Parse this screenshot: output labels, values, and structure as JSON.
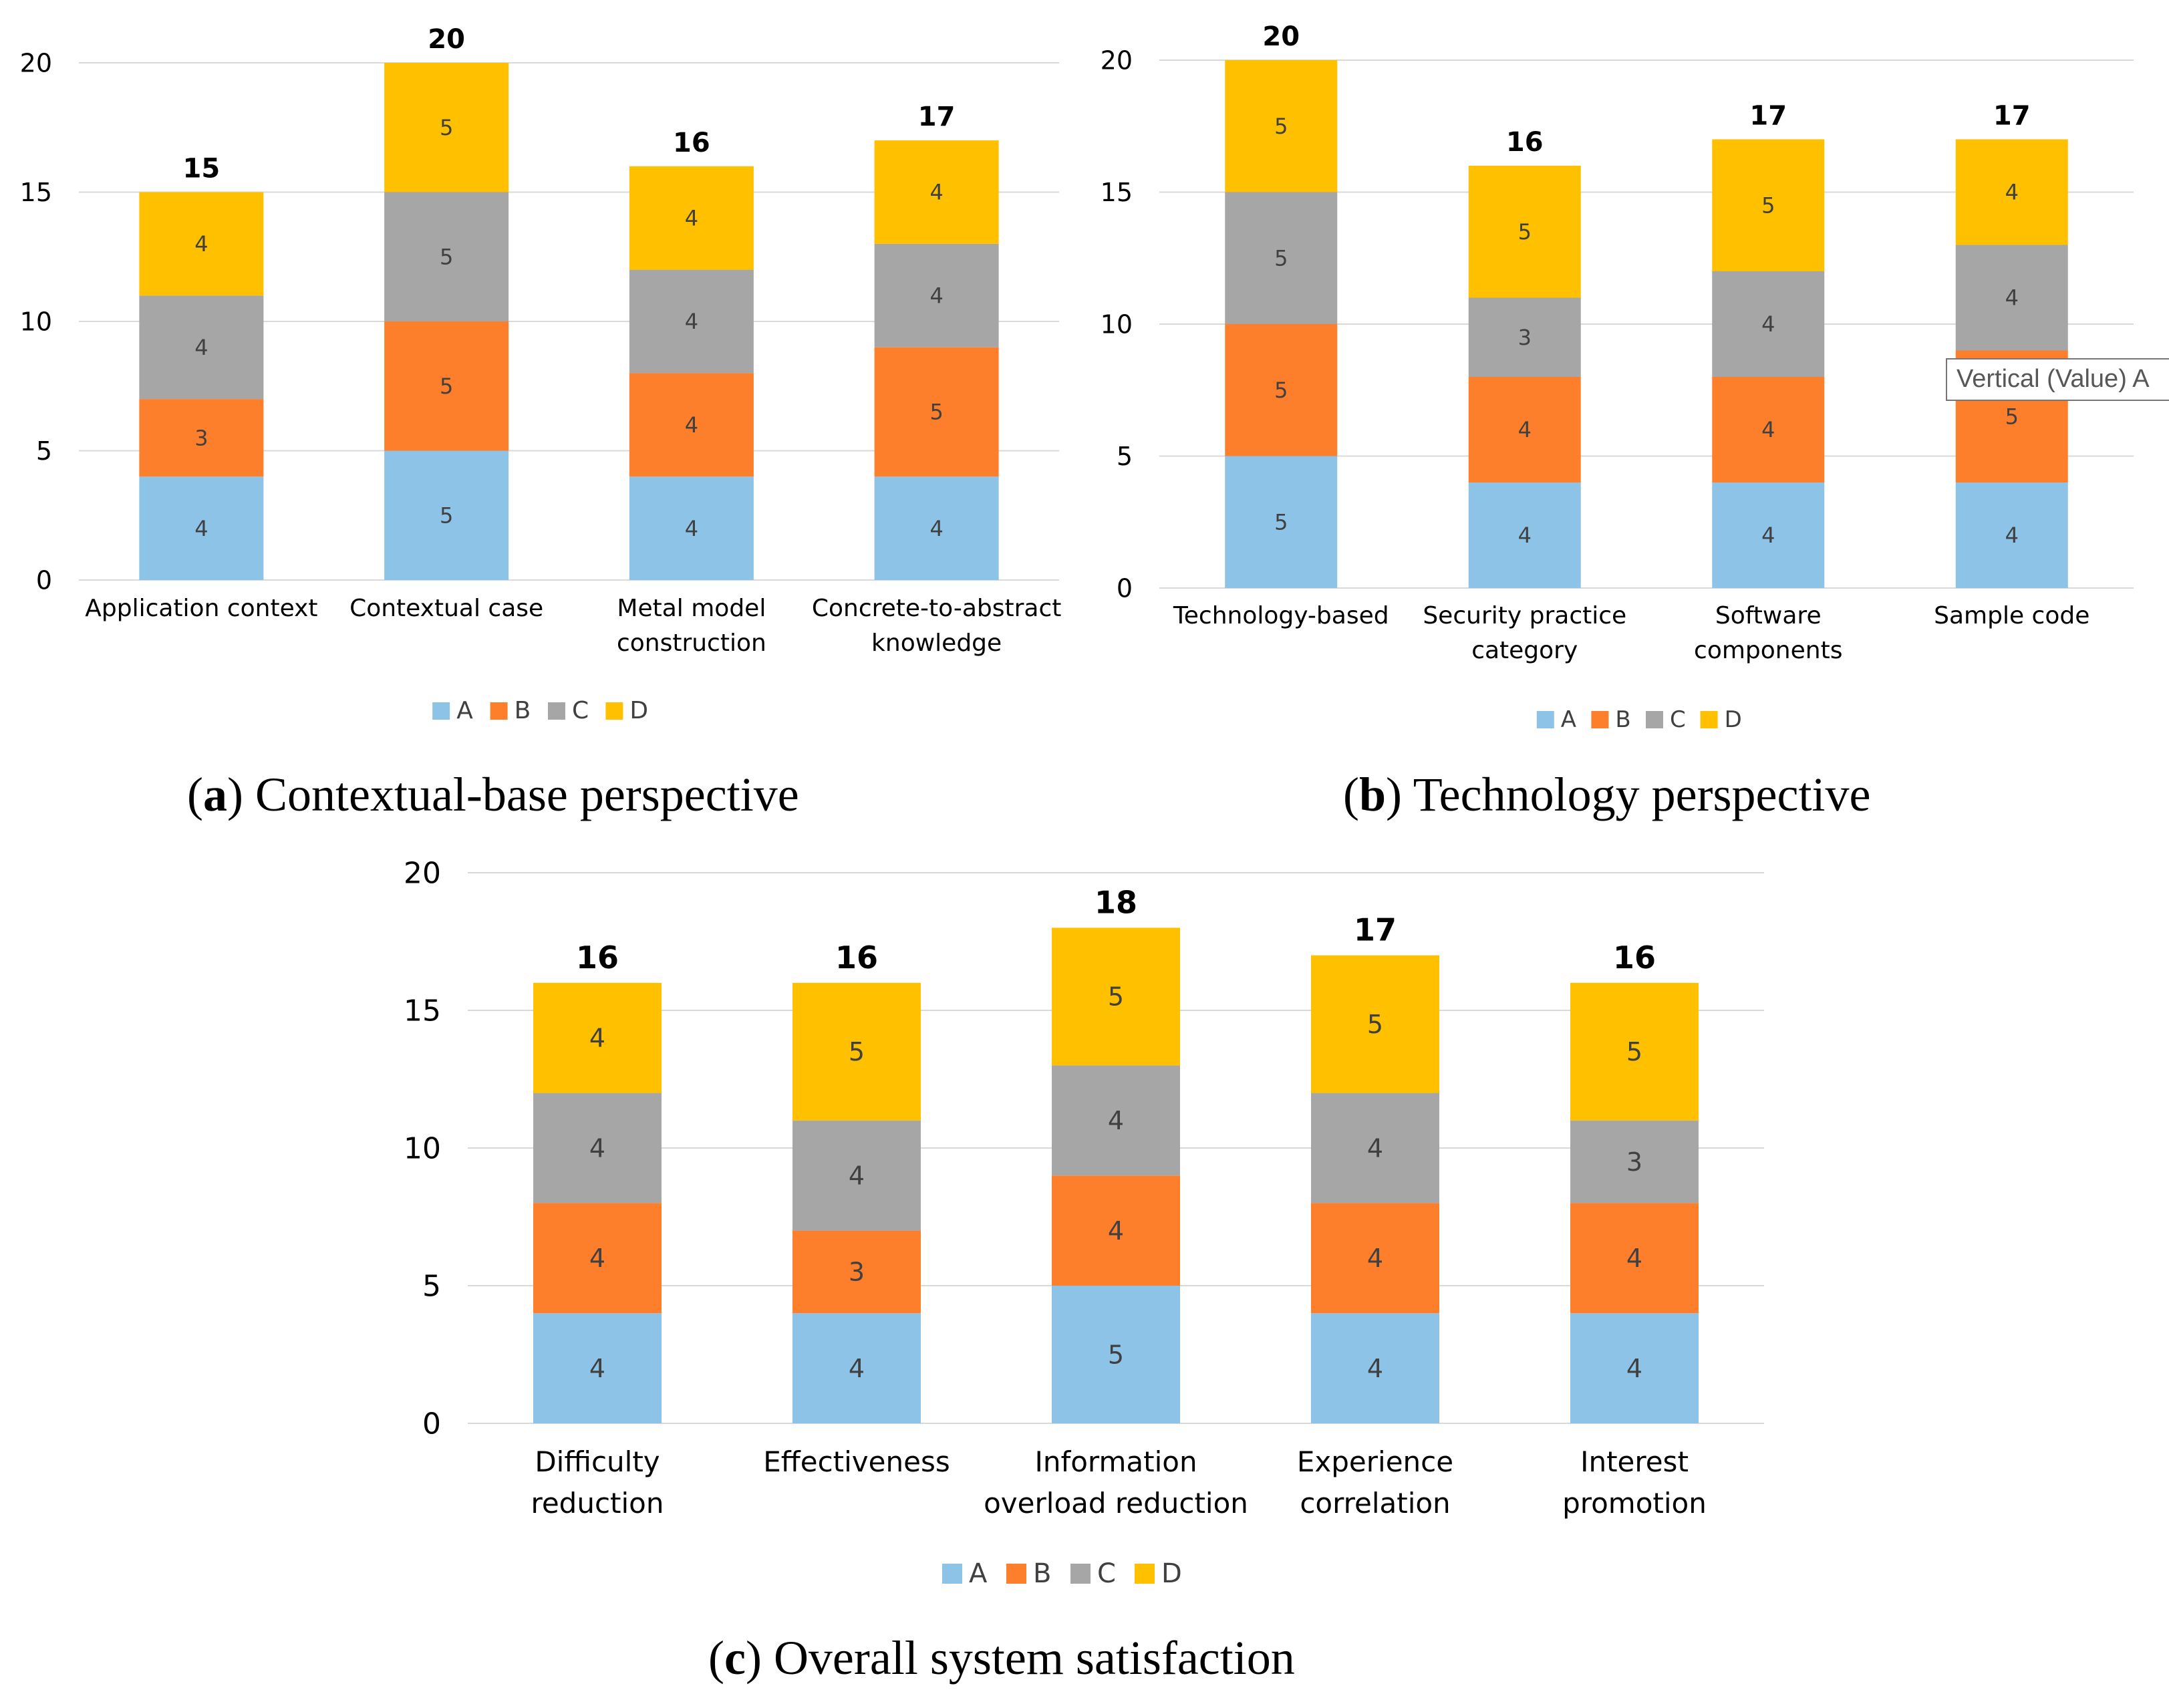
{
  "colors": {
    "A": "#8DC3E7",
    "B": "#FD7F2B",
    "C": "#A6A6A6",
    "D": "#FFC000",
    "grid": "#D9D9D9",
    "text": "#404040"
  },
  "tooltip": "Vertical (Value) A",
  "chart_data": [
    {
      "id": "a",
      "type": "bar",
      "stacked": true,
      "caption_letter": "a",
      "caption_text": "Contextual-base perspective",
      "categories": [
        [
          "Application context"
        ],
        [
          "Contextual case"
        ],
        [
          "Metal model",
          "construction"
        ],
        [
          "Concrete-to-abstract",
          "knowledge"
        ]
      ],
      "series": [
        {
          "name": "A",
          "values": [
            4,
            5,
            4,
            4
          ]
        },
        {
          "name": "B",
          "values": [
            3,
            5,
            4,
            5
          ]
        },
        {
          "name": "C",
          "values": [
            4,
            5,
            4,
            4
          ]
        },
        {
          "name": "D",
          "values": [
            4,
            5,
            4,
            4
          ]
        }
      ],
      "totals": [
        15,
        20,
        16,
        17
      ],
      "ylim": [
        0,
        20
      ],
      "yticks": [
        0,
        5,
        10,
        15,
        20
      ],
      "legend": "bottom"
    },
    {
      "id": "b",
      "type": "bar",
      "stacked": true,
      "caption_letter": "b",
      "caption_text": "Technology perspective",
      "categories": [
        [
          "Technology-based"
        ],
        [
          "Security practice",
          "category"
        ],
        [
          "Software",
          "components"
        ],
        [
          "Sample code"
        ]
      ],
      "series": [
        {
          "name": "A",
          "values": [
            5,
            4,
            4,
            4
          ]
        },
        {
          "name": "B",
          "values": [
            5,
            4,
            4,
            5
          ]
        },
        {
          "name": "C",
          "values": [
            5,
            3,
            4,
            4
          ]
        },
        {
          "name": "D",
          "values": [
            5,
            5,
            5,
            4
          ]
        }
      ],
      "totals": [
        20,
        16,
        17,
        17
      ],
      "ylim": [
        0,
        20
      ],
      "yticks": [
        0,
        5,
        10,
        15,
        20
      ],
      "legend": "bottom"
    },
    {
      "id": "c",
      "type": "bar",
      "stacked": true,
      "caption_letter": "c",
      "caption_text": "Overall system satisfaction",
      "categories": [
        [
          "Difficulty",
          "reduction"
        ],
        [
          "Effectiveness"
        ],
        [
          "Information",
          "overload reduction"
        ],
        [
          "Experience",
          "correlation"
        ],
        [
          "Interest",
          "promotion"
        ]
      ],
      "series": [
        {
          "name": "A",
          "values": [
            4,
            4,
            5,
            4,
            4
          ]
        },
        {
          "name": "B",
          "values": [
            4,
            3,
            4,
            4,
            4
          ]
        },
        {
          "name": "C",
          "values": [
            4,
            4,
            4,
            4,
            3
          ]
        },
        {
          "name": "D",
          "values": [
            4,
            5,
            5,
            5,
            5
          ]
        }
      ],
      "totals": [
        16,
        16,
        18,
        17,
        16
      ],
      "ylim": [
        0,
        20
      ],
      "yticks": [
        0,
        5,
        10,
        15,
        20
      ],
      "legend": "bottom"
    }
  ]
}
